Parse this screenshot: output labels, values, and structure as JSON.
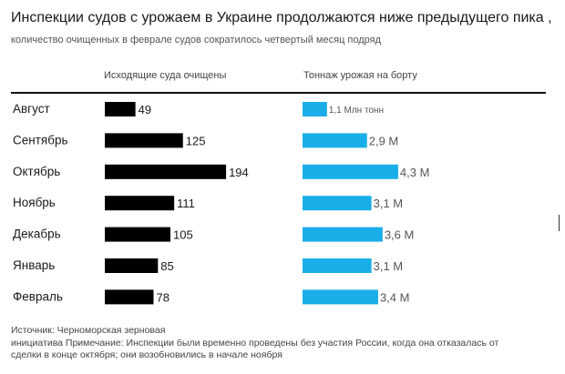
{
  "chart_data": {
    "type": "bar",
    "title": "Инспекции судов с урожаем в Украине продолжаются ниже предыдущего пика ,",
    "subtitle": "количество очищенных в феврале судов сократилось четвертый месяц подряд",
    "categories": [
      "Август",
      "Сентябрь",
      "Октябрь",
      "Ноябрь",
      "Декабрь",
      "Январь",
      "Февраль"
    ],
    "series": [
      {
        "name": "Исходящие суда очищены",
        "values": [
          49,
          125,
          194,
          111,
          105,
          85,
          78
        ],
        "labels": [
          "49",
          "125",
          "194",
          "111",
          "105",
          "85",
          "78"
        ],
        "color": "#000000"
      },
      {
        "name": "Тоннаж урожая на борту",
        "values": [
          1.1,
          2.9,
          4.3,
          3.1,
          3.6,
          3.1,
          3.4
        ],
        "labels": [
          "1,1 Млн тонн",
          "2,9 М",
          "4,3 М",
          "3,1 М",
          "3,6 М",
          "3,1 М",
          "3,4 М"
        ],
        "color": "#1aaee8"
      }
    ],
    "grid": false,
    "legend": "column headers above each bar group"
  },
  "source": {
    "lines": [
      "Источник: Черноморская зерновая",
      "инициатива Примечание: Инспекции были временно проведены без участия России, когда она отказалась от",
      "сделки в конце октября; они возобновились в начале ноября"
    ]
  }
}
